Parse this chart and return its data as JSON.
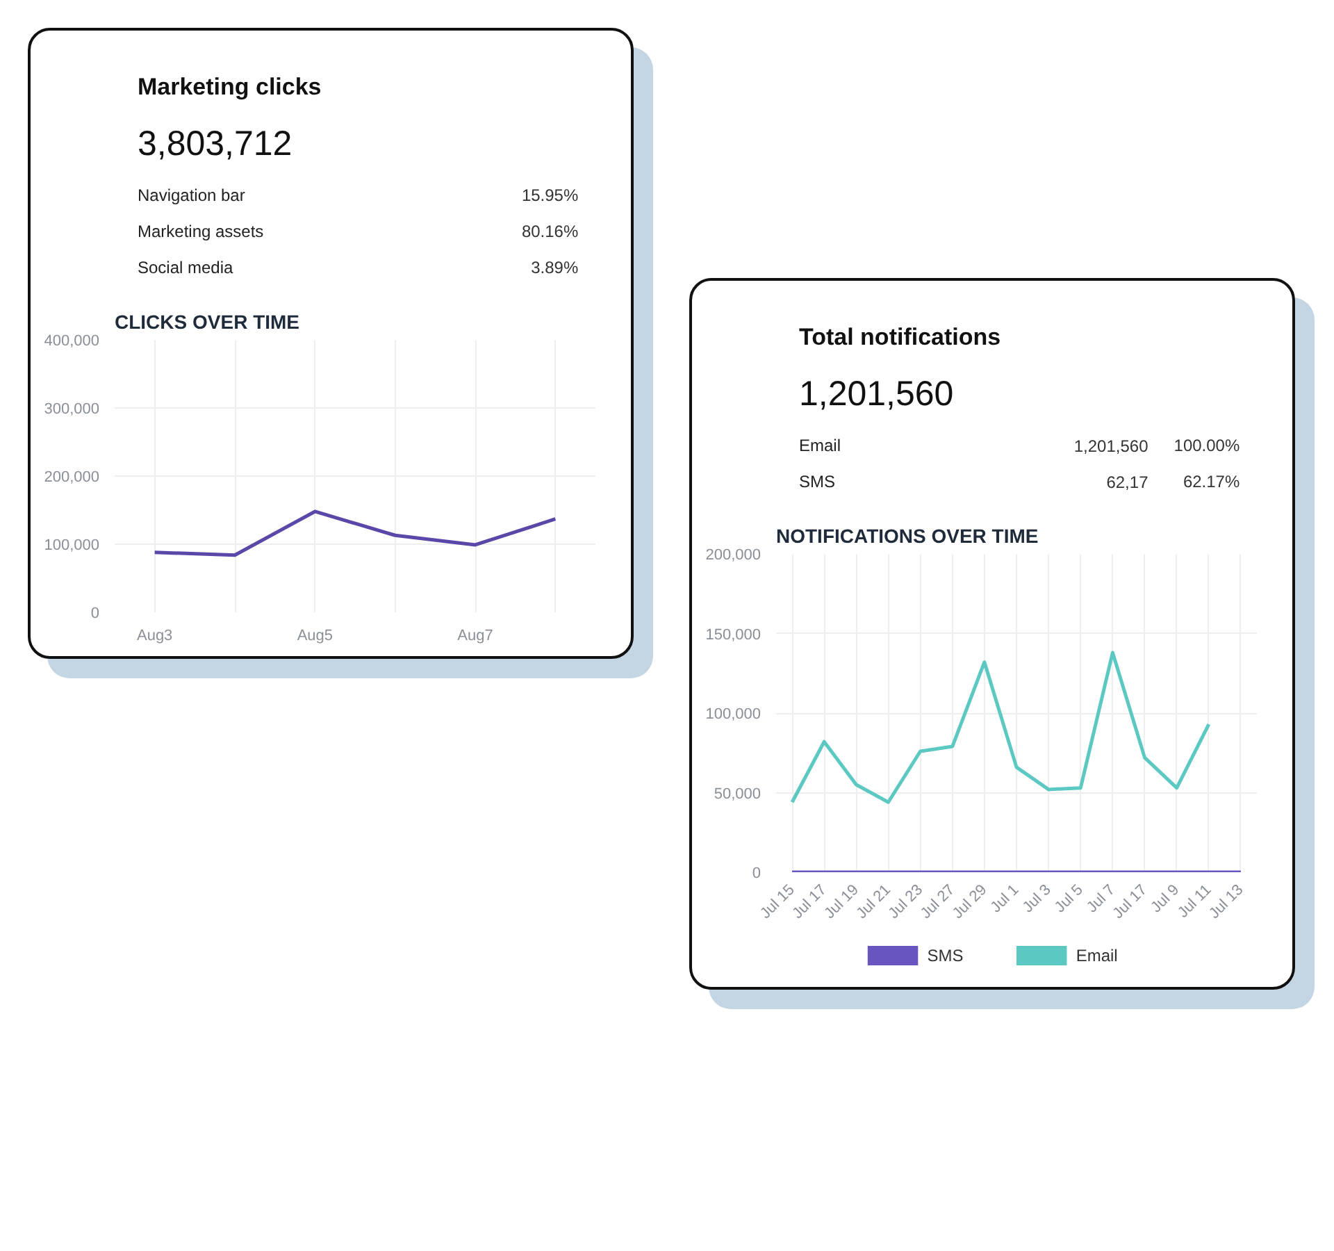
{
  "chart_data": [
    {
      "type": "other",
      "title": "Marketing clicks",
      "subtitle": "3,803,712",
      "categories": [
        "Navigation bar",
        "Marketing assets",
        "Social media"
      ],
      "values": [
        15.95,
        80.16,
        3.89
      ],
      "value_labels": [
        "15.95%",
        "80.16%",
        "3.89%"
      ]
    },
    {
      "type": "line",
      "title": "CLICKS OVER TIME",
      "categories": [
        "Aug3",
        null,
        "Aug5",
        null,
        "Aug7",
        null
      ],
      "ylim": [
        0,
        400000
      ],
      "yticks": [
        {
          "value": 0,
          "label": "0"
        },
        {
          "value": 100000,
          "label": "100,000"
        },
        {
          "value": 200000,
          "label": "200,000"
        },
        {
          "value": 300000,
          "label": "300,000"
        },
        {
          "value": 400000,
          "label": "400,000"
        }
      ],
      "grid": true,
      "series": [
        {
          "color": "#5a47a8",
          "values": [
            88000,
            84000,
            148000,
            113000,
            99000,
            137000
          ]
        }
      ]
    },
    {
      "type": "other",
      "title": "Total notifications",
      "subtitle": "1,201,560",
      "categories": [
        "Email",
        "SMS"
      ],
      "series": [
        {
          "values": [
            1201560,
            null
          ],
          "value_labels": [
            "1,201,560",
            "62,17"
          ]
        },
        {
          "values": [
            100,
            62.17
          ],
          "value_labels": [
            "100.00%",
            "62.17%"
          ]
        }
      ]
    },
    {
      "type": "line",
      "title": "NOTIFICATIONS OVER TIME",
      "categories": [
        "Jul 15",
        "Jul 17",
        "Jul 19",
        "Jul 21",
        "Jul 23",
        "Jul 27",
        "Jul 29",
        "Jul 1",
        "Jul 3",
        "Jul 5",
        "Jul 7",
        "Jul 17",
        "Jul 9",
        "Jul 11",
        "Jul 13"
      ],
      "ylim": [
        0,
        200000
      ],
      "yticks": [
        {
          "value": 0,
          "label": "0"
        },
        {
          "value": 50000,
          "label": "50,000"
        },
        {
          "value": 100000,
          "label": "100,000"
        },
        {
          "value": 150000,
          "label": "150,000"
        },
        {
          "value": 200000,
          "label": "200,000"
        }
      ],
      "grid": true,
      "legend": "bottom",
      "series": [
        {
          "name": "SMS",
          "color": "#6a55c0",
          "values": [
            0,
            0,
            0,
            0,
            0,
            0,
            0,
            0,
            0,
            0,
            0,
            0,
            0,
            0,
            0
          ]
        },
        {
          "name": "Email",
          "color": "#5bc8c2",
          "values": [
            44000,
            82000,
            55000,
            44000,
            76000,
            79000,
            132000,
            66000,
            52000,
            53000,
            138000,
            72000,
            53000,
            93000,
            null
          ]
        }
      ]
    }
  ]
}
